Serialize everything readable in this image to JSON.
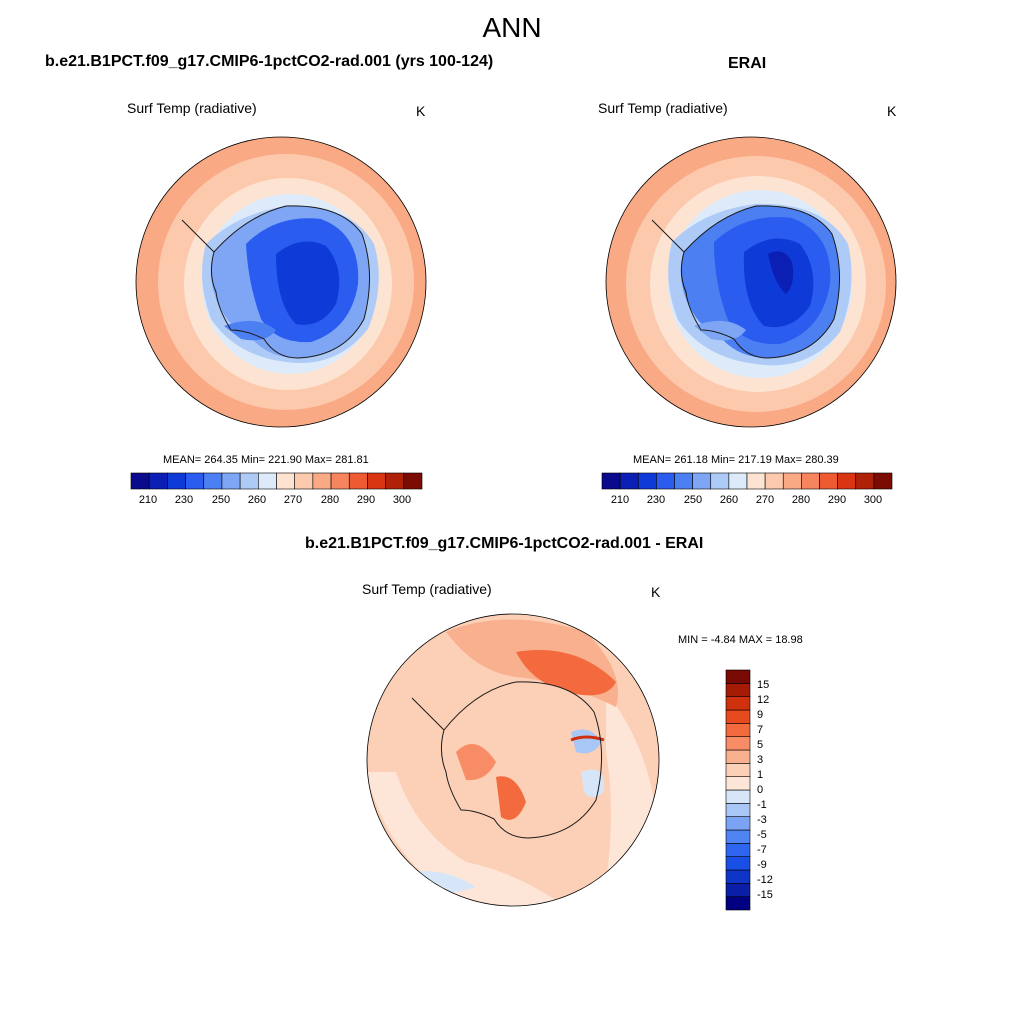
{
  "page_title": "ANN",
  "colors": {
    "abs_palette": [
      "#0a0a8c",
      "#0b1fb4",
      "#0e3bd8",
      "#2a5cf0",
      "#4c7ff2",
      "#7ea6f5",
      "#aecbf7",
      "#dceaf9",
      "#fde3d2",
      "#fcc9ad",
      "#f9a984",
      "#f5845f",
      "#ee5a32",
      "#d93512",
      "#b0210a",
      "#7a0c04"
    ],
    "diff_palette": [
      "#000080",
      "#0a1ea8",
      "#0d36c9",
      "#1a4fe6",
      "#2f66f0",
      "#5084f2",
      "#7aa3f4",
      "#a8c6f6",
      "#d6e6f8",
      "#fde6d8",
      "#fbd0b6",
      "#f9b08e",
      "#f78c66",
      "#f36a3f",
      "#e84a1f",
      "#cf300e",
      "#a51b06",
      "#780903"
    ],
    "coast": "#1a1a1a"
  },
  "chart_data": [
    {
      "type": "heatmap",
      "projection": "south-polar-stereographic",
      "title": "b.e21.B1PCT.f09_g17.CMIP6-1pctCO2-rad.001 (yrs 100-124)",
      "variable": "Surf Temp (radiative)",
      "units": "K",
      "stats_text": "MEAN= 264.35  Min= 221.90  Max= 281.81",
      "mean": 264.35,
      "min": 221.9,
      "max": 281.81,
      "colorbar": {
        "orientation": "horizontal",
        "levels": [
          210,
          220,
          230,
          240,
          250,
          255,
          260,
          265,
          270,
          275,
          280,
          285,
          290,
          295,
          300
        ],
        "tick_labels": [
          "210",
          "230",
          "250",
          "260",
          "270",
          "280",
          "290",
          "300"
        ]
      }
    },
    {
      "type": "heatmap",
      "projection": "south-polar-stereographic",
      "title": "ERAI",
      "variable": "Surf Temp (radiative)",
      "units": "K",
      "stats_text": "MEAN= 261.18  Min= 217.19  Max= 280.39",
      "mean": 261.18,
      "min": 217.19,
      "max": 280.39,
      "colorbar": {
        "orientation": "horizontal",
        "levels": [
          210,
          220,
          230,
          240,
          250,
          255,
          260,
          265,
          270,
          275,
          280,
          285,
          290,
          295,
          300
        ],
        "tick_labels": [
          "210",
          "230",
          "250",
          "260",
          "270",
          "280",
          "290",
          "300"
        ]
      }
    },
    {
      "type": "heatmap",
      "projection": "south-polar-stereographic",
      "title": "b.e21.B1PCT.f09_g17.CMIP6-1pctCO2-rad.001 - ERAI",
      "variable": "Surf Temp (radiative)",
      "units": "K",
      "stats_text": "MIN =  -4.84 MAX =  18.98",
      "min": -4.84,
      "max": 18.98,
      "colorbar": {
        "orientation": "vertical",
        "levels": [
          -15,
          -12,
          -9,
          -7,
          -5,
          -3,
          -1,
          0,
          1,
          3,
          5,
          7,
          9,
          12,
          15
        ],
        "tick_labels": [
          "15",
          "12",
          "9",
          "7",
          "5",
          "3",
          "1",
          "0",
          "-1",
          "-3",
          "-5",
          "-7",
          "-9",
          "-12",
          "-15"
        ]
      }
    }
  ]
}
